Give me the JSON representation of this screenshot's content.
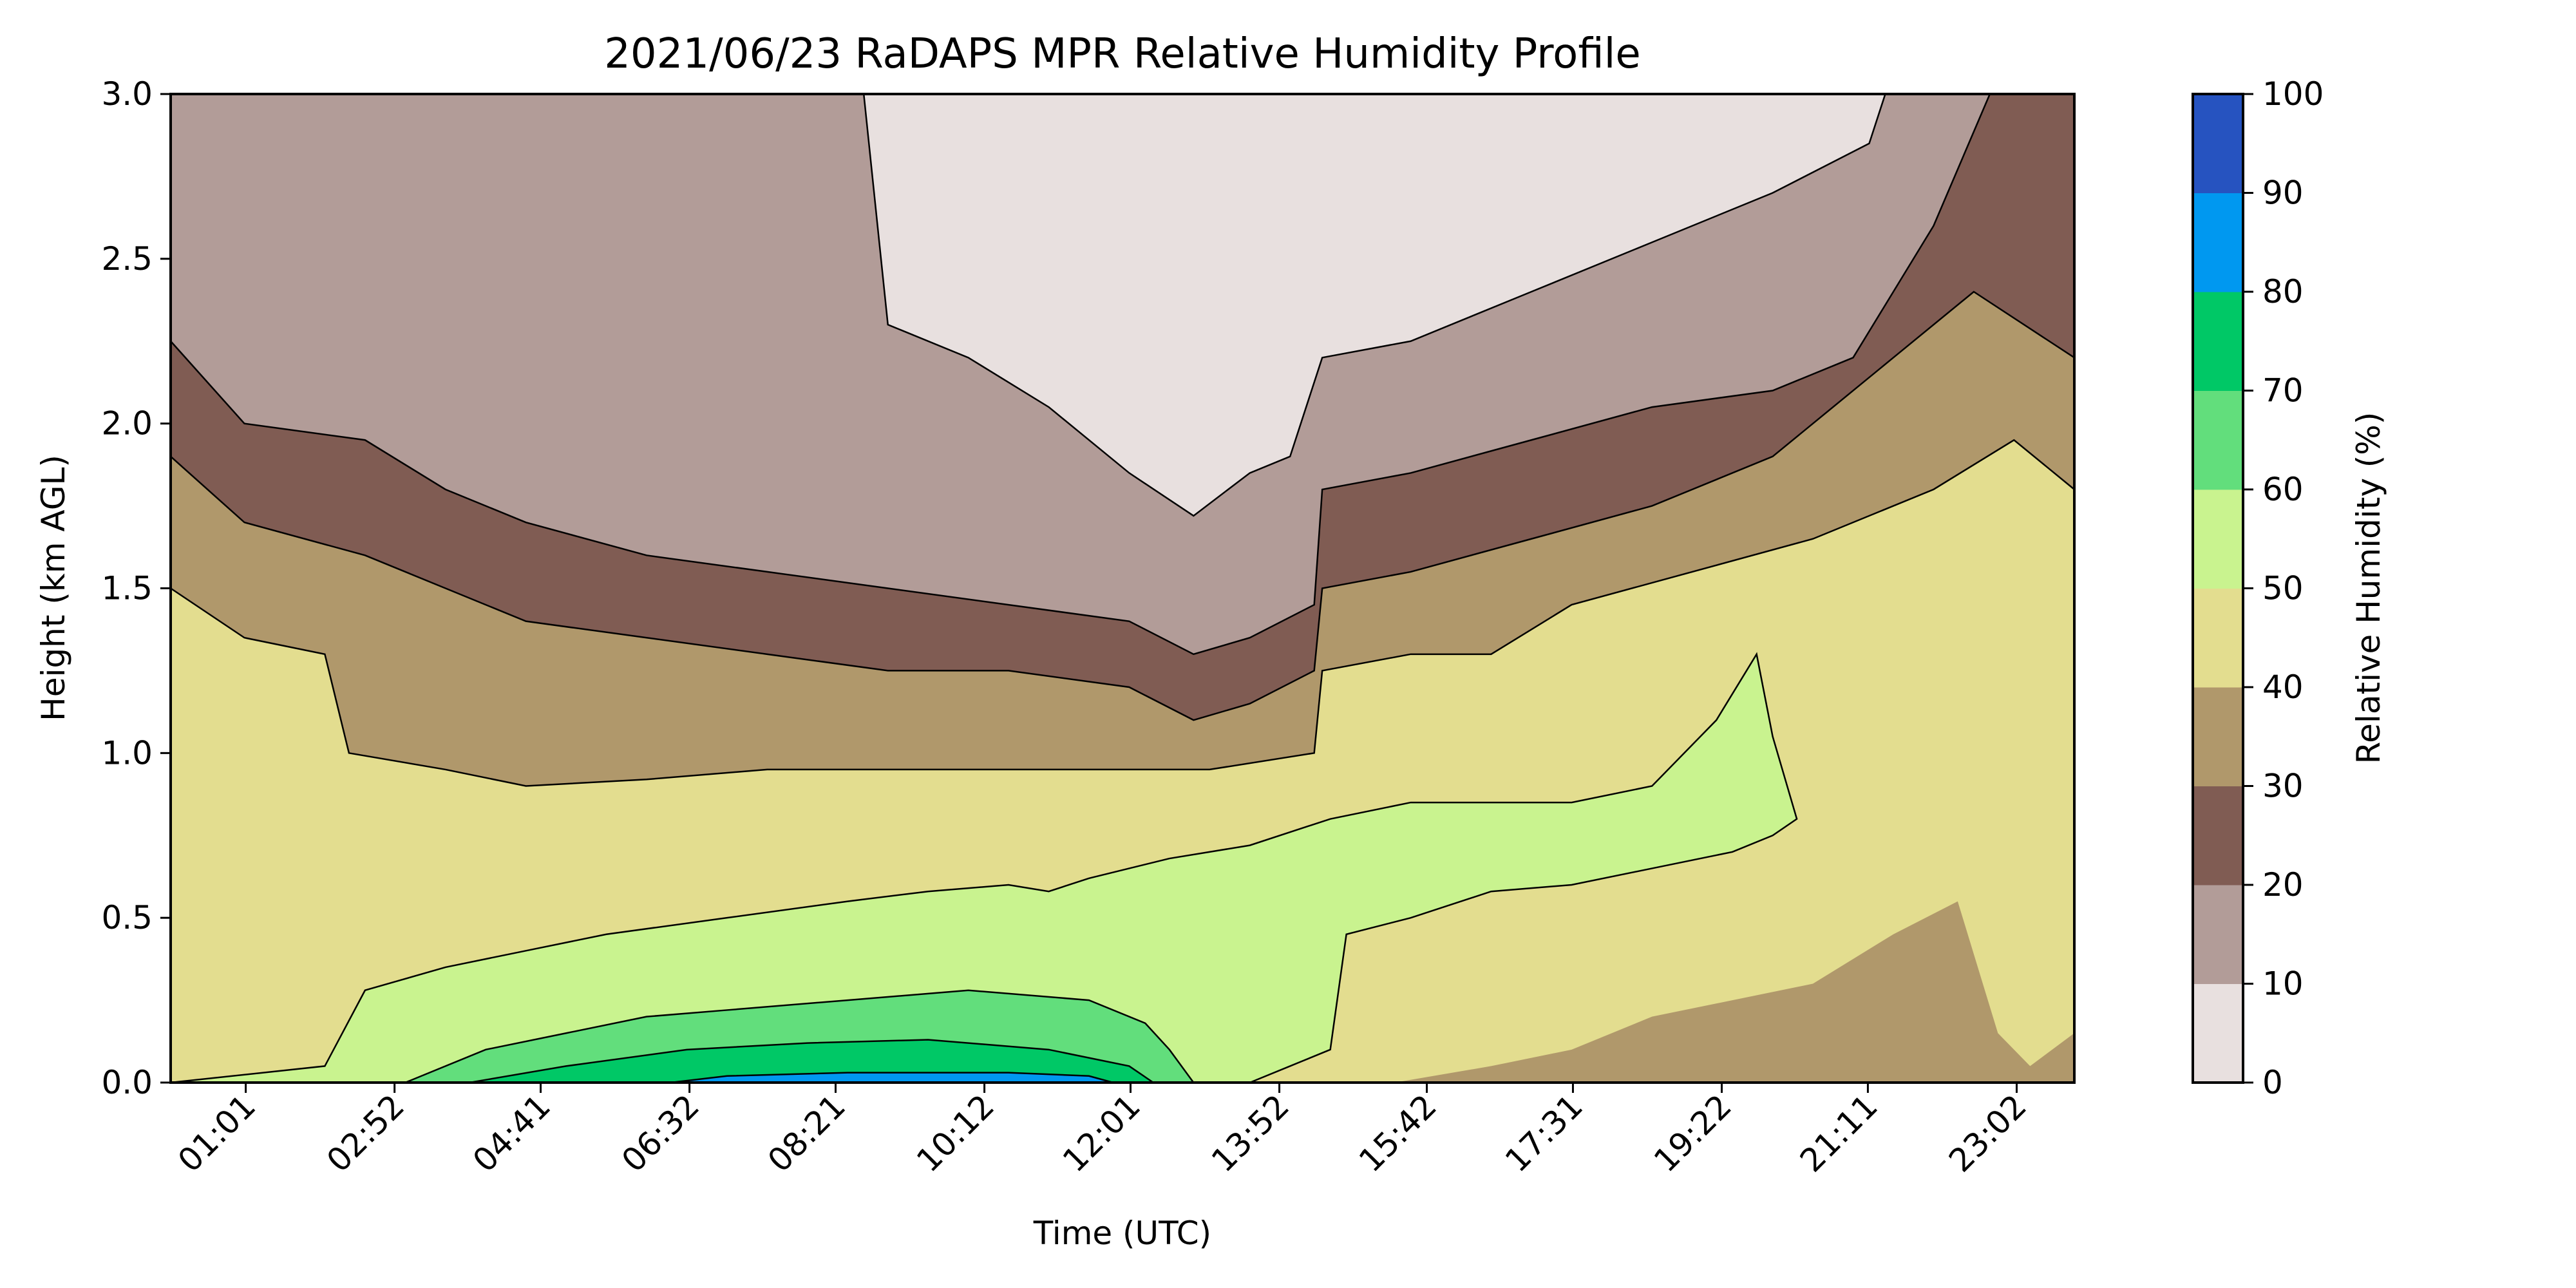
{
  "chart_data": {
    "type": "heatmap",
    "subtype": "filled-contour",
    "title": "2021/06/23 RaDAPS MPR Relative Humidity Profile",
    "xlabel": "Time (UTC)",
    "ylabel": "Height (km AGL)",
    "colorbar_label": "Relative Humidity (%)",
    "xlim_hours": [
      0.0833,
      23.75
    ],
    "ylim": [
      0.0,
      3.0
    ],
    "x_ticks": [
      {
        "hour": 1.0167,
        "label": "01:01"
      },
      {
        "hour": 2.8667,
        "label": "02:52"
      },
      {
        "hour": 4.6833,
        "label": "04:41"
      },
      {
        "hour": 6.5333,
        "label": "06:32"
      },
      {
        "hour": 8.35,
        "label": "08:21"
      },
      {
        "hour": 10.2,
        "label": "10:12"
      },
      {
        "hour": 12.0167,
        "label": "12:01"
      },
      {
        "hour": 13.8667,
        "label": "13:52"
      },
      {
        "hour": 15.7,
        "label": "15:42"
      },
      {
        "hour": 17.5167,
        "label": "17:31"
      },
      {
        "hour": 19.3667,
        "label": "19:22"
      },
      {
        "hour": 21.1833,
        "label": "21:11"
      },
      {
        "hour": 23.0333,
        "label": "23:02"
      }
    ],
    "y_ticks": [
      {
        "value": 0.0,
        "label": "0.0"
      },
      {
        "value": 0.5,
        "label": "0.5"
      },
      {
        "value": 1.0,
        "label": "1.0"
      },
      {
        "value": 1.5,
        "label": "1.5"
      },
      {
        "value": 2.0,
        "label": "2.0"
      },
      {
        "value": 2.5,
        "label": "2.5"
      },
      {
        "value": 3.0,
        "label": "3.0"
      }
    ],
    "levels": [
      0,
      10,
      20,
      30,
      40,
      50,
      60,
      70,
      80,
      90,
      100
    ],
    "level_colors": [
      "#e8e0df",
      "#b29c98",
      "#805c53",
      "#b0986b",
      "#e3dd8f",
      "#c9f38f",
      "#62de7c",
      "#00c866",
      "#0098f0",
      "#2653c0"
    ],
    "colorbar_ticks": [
      "0",
      "10",
      "20",
      "30",
      "40",
      "50",
      "60",
      "70",
      "80",
      "90",
      "100"
    ],
    "contour_boundaries_km": [
      {
        "level": 10,
        "points": [
          [
            8.7,
            3.0
          ],
          [
            9.0,
            2.3
          ],
          [
            10.0,
            2.2
          ],
          [
            11.0,
            2.05
          ],
          [
            12.0,
            1.85
          ],
          [
            12.8,
            1.72
          ],
          [
            13.5,
            1.85
          ],
          [
            14.0,
            1.9
          ],
          [
            14.4,
            2.2
          ],
          [
            15.5,
            2.25
          ],
          [
            17.0,
            2.4
          ],
          [
            18.5,
            2.55
          ],
          [
            20.0,
            2.7
          ],
          [
            21.2,
            2.85
          ],
          [
            21.4,
            3.0
          ]
        ]
      },
      {
        "level": 20,
        "points": [
          [
            0.0833,
            2.25
          ],
          [
            1.0,
            2.0
          ],
          [
            2.5,
            1.95
          ],
          [
            3.5,
            1.8
          ],
          [
            4.5,
            1.7
          ],
          [
            6.0,
            1.6
          ],
          [
            7.5,
            1.55
          ],
          [
            9.0,
            1.5
          ],
          [
            10.5,
            1.45
          ],
          [
            12.0,
            1.4
          ],
          [
            12.8,
            1.3
          ],
          [
            13.5,
            1.35
          ],
          [
            14.3,
            1.45
          ],
          [
            14.4,
            1.8
          ],
          [
            15.5,
            1.85
          ],
          [
            17.0,
            1.95
          ],
          [
            18.5,
            2.05
          ],
          [
            20.0,
            2.1
          ],
          [
            21.0,
            2.2
          ],
          [
            22.0,
            2.6
          ],
          [
            22.7,
            3.0
          ]
        ]
      },
      {
        "level": 30,
        "points": [
          [
            0.0833,
            1.9
          ],
          [
            1.0,
            1.7
          ],
          [
            2.5,
            1.6
          ],
          [
            3.5,
            1.5
          ],
          [
            4.5,
            1.4
          ],
          [
            6.0,
            1.35
          ],
          [
            7.5,
            1.3
          ],
          [
            9.0,
            1.25
          ],
          [
            10.5,
            1.25
          ],
          [
            12.0,
            1.2
          ],
          [
            12.8,
            1.1
          ],
          [
            13.5,
            1.15
          ],
          [
            14.3,
            1.25
          ],
          [
            14.4,
            1.5
          ],
          [
            15.5,
            1.55
          ],
          [
            17.0,
            1.65
          ],
          [
            18.5,
            1.75
          ],
          [
            20.0,
            1.9
          ],
          [
            21.5,
            2.2
          ],
          [
            22.5,
            2.4
          ],
          [
            23.75,
            2.2
          ]
        ]
      },
      {
        "level": 40,
        "points": [
          [
            0.0833,
            1.5
          ],
          [
            1.0,
            1.35
          ],
          [
            2.0,
            1.3
          ],
          [
            2.3,
            1.0
          ],
          [
            3.5,
            0.95
          ],
          [
            4.5,
            0.9
          ],
          [
            6.0,
            0.92
          ],
          [
            7.5,
            0.95
          ],
          [
            9.0,
            0.95
          ],
          [
            10.5,
            0.95
          ],
          [
            12.0,
            0.95
          ],
          [
            13.0,
            0.95
          ],
          [
            14.3,
            1.0
          ],
          [
            14.4,
            1.25
          ],
          [
            15.5,
            1.3
          ],
          [
            16.5,
            1.3
          ],
          [
            17.5,
            1.45
          ],
          [
            19.0,
            1.55
          ],
          [
            20.5,
            1.65
          ],
          [
            22.0,
            1.8
          ],
          [
            23.0,
            1.95
          ],
          [
            23.75,
            1.8
          ]
        ]
      },
      {
        "level": 50,
        "points": [
          [
            0.0833,
            0.0
          ],
          [
            2.0,
            0.05
          ],
          [
            2.5,
            0.28
          ],
          [
            3.5,
            0.35
          ],
          [
            4.5,
            0.4
          ],
          [
            5.5,
            0.45
          ],
          [
            7.0,
            0.5
          ],
          [
            8.5,
            0.55
          ],
          [
            9.5,
            0.58
          ],
          [
            10.5,
            0.6
          ],
          [
            11.0,
            0.58
          ],
          [
            11.5,
            0.62
          ],
          [
            12.5,
            0.68
          ],
          [
            13.5,
            0.72
          ],
          [
            14.5,
            0.8
          ],
          [
            15.5,
            0.85
          ],
          [
            16.5,
            0.85
          ],
          [
            17.5,
            0.85
          ],
          [
            18.5,
            0.9
          ],
          [
            19.3,
            1.1
          ],
          [
            19.8,
            1.3
          ],
          [
            20.0,
            1.05
          ],
          [
            20.3,
            0.8
          ],
          [
            20.0,
            0.75
          ],
          [
            19.5,
            0.7
          ],
          [
            18.5,
            0.65
          ],
          [
            17.5,
            0.6
          ],
          [
            16.5,
            0.58
          ],
          [
            15.5,
            0.5
          ],
          [
            14.7,
            0.45
          ],
          [
            14.5,
            0.1
          ],
          [
            14.0,
            0.05
          ],
          [
            13.5,
            0.0
          ]
        ]
      },
      {
        "level": 60,
        "points": [
          [
            3.0,
            0.0
          ],
          [
            4.0,
            0.1
          ],
          [
            5.0,
            0.15
          ],
          [
            6.0,
            0.2
          ],
          [
            7.0,
            0.22
          ],
          [
            8.5,
            0.25
          ],
          [
            10.0,
            0.28
          ],
          [
            11.5,
            0.25
          ],
          [
            12.2,
            0.18
          ],
          [
            12.5,
            0.1
          ],
          [
            12.8,
            0.0
          ]
        ]
      },
      {
        "level": 70,
        "points": [
          [
            3.8,
            0.0
          ],
          [
            5.0,
            0.05
          ],
          [
            6.5,
            0.1
          ],
          [
            8.0,
            0.12
          ],
          [
            9.5,
            0.13
          ],
          [
            11.0,
            0.1
          ],
          [
            12.0,
            0.05
          ],
          [
            12.3,
            0.0
          ]
        ]
      },
      {
        "level": 80,
        "points": [
          [
            6.3,
            0.0
          ],
          [
            7.0,
            0.02
          ],
          [
            8.5,
            0.03
          ],
          [
            10.5,
            0.03
          ],
          [
            11.5,
            0.02
          ],
          [
            11.8,
            0.0
          ]
        ]
      }
    ]
  }
}
